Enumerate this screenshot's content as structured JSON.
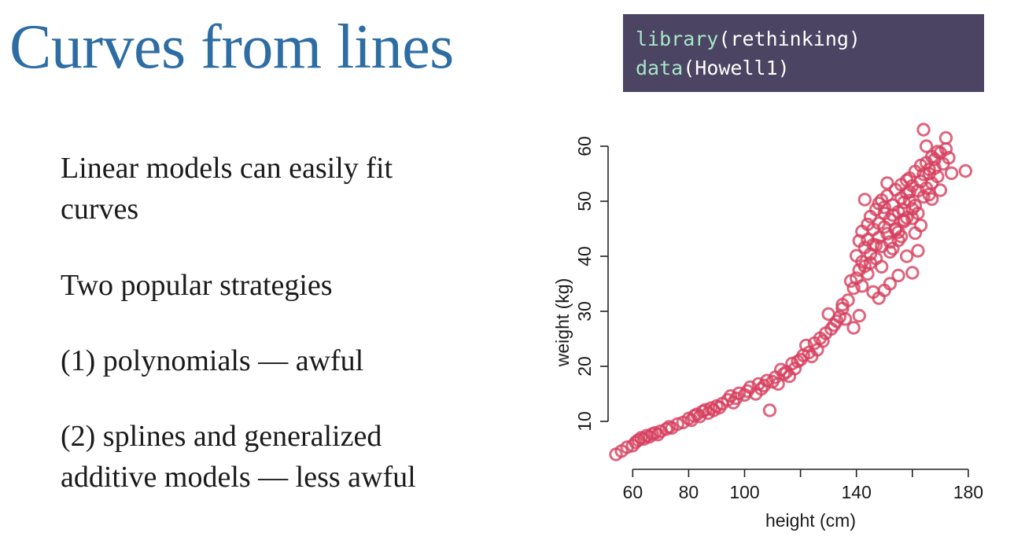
{
  "colors": {
    "title": "#2e6da4",
    "code_bg": "#4b4462",
    "code_fn": "#a8e6c8",
    "code_text": "#ffffff",
    "points": "#d6405e"
  },
  "slide": {
    "title": "Curves from lines",
    "code": [
      {
        "fn": "library",
        "args": "(rethinking)"
      },
      {
        "fn": "data",
        "args": "(Howell1)"
      }
    ],
    "bullets": [
      [
        "Linear models can easily fit",
        "curves"
      ],
      [
        "Two popular strategies"
      ],
      [
        "(1) polynomials — awful"
      ],
      [
        "(2) splines and generalized",
        "additive models — less awful"
      ]
    ]
  },
  "chart_data": {
    "type": "scatter",
    "title": "",
    "xlabel": "height (cm)",
    "ylabel": "weight (kg)",
    "xlim": [
      54,
      182
    ],
    "ylim": [
      3,
      63
    ],
    "xticks": [
      60,
      80,
      100,
      140,
      180
    ],
    "yticks": [
      10,
      20,
      30,
      40,
      50,
      60
    ],
    "grid": false,
    "series": [
      {
        "x": [
          54,
          56,
          58,
          60,
          61,
          62,
          63,
          64,
          65,
          66,
          67,
          68,
          69,
          70,
          72,
          73,
          74,
          76,
          78,
          80,
          81,
          82,
          83,
          84,
          85,
          86,
          87,
          88,
          89,
          90,
          91,
          92,
          94,
          95,
          96,
          97,
          98,
          100,
          101,
          102,
          104,
          105,
          106,
          107,
          108,
          109,
          110,
          111,
          112,
          113,
          114,
          115,
          116,
          117,
          118,
          119,
          120,
          121,
          122,
          123,
          124,
          125,
          126,
          127,
          128,
          129,
          130,
          131,
          132,
          133,
          134,
          135,
          136,
          137,
          138,
          139,
          140,
          140,
          141,
          141,
          142,
          142,
          143,
          143,
          144,
          144,
          145,
          145,
          146,
          146,
          147,
          147,
          148,
          148,
          149,
          149,
          150,
          150,
          151,
          151,
          152,
          152,
          153,
          153,
          154,
          154,
          155,
          155,
          156,
          156,
          157,
          157,
          158,
          158,
          159,
          159,
          160,
          160,
          161,
          161,
          162,
          162,
          163,
          163,
          164,
          164,
          165,
          165,
          166,
          166,
          167,
          167,
          168,
          168,
          169,
          170,
          171,
          172,
          173,
          174,
          179,
          164,
          172,
          169,
          160,
          135,
          148,
          150,
          152,
          145,
          155,
          158,
          162,
          147,
          139,
          143,
          157,
          151,
          165,
          146,
          141,
          149,
          154,
          156,
          160,
          163,
          167,
          170,
          153,
          150,
          148,
          159,
          144,
          142,
          161,
          157,
          152,
          166,
          155,
          158
        ],
        "y": [
          4.0,
          4.6,
          5.3,
          5.6,
          6.2,
          6.6,
          7.0,
          6.8,
          7.4,
          7.2,
          7.7,
          7.9,
          7.6,
          8.2,
          8.6,
          9.0,
          8.8,
          9.5,
          9.8,
          10.5,
          10.2,
          11.0,
          11.3,
          10.9,
          11.8,
          12.1,
          11.5,
          12.4,
          12.0,
          12.8,
          12.5,
          13.2,
          13.9,
          14.6,
          13.4,
          14.2,
          15.1,
          14.8,
          15.5,
          16.2,
          15.0,
          16.8,
          15.9,
          16.5,
          17.4,
          12.0,
          17.2,
          18.0,
          16.8,
          19.4,
          18.6,
          19.0,
          18.2,
          20.5,
          19.6,
          20.9,
          21.2,
          22.0,
          23.8,
          22.5,
          21.8,
          24.2,
          23.0,
          25.1,
          24.6,
          26.0,
          29.5,
          26.8,
          27.5,
          28.2,
          29.0,
          30.5,
          28.6,
          32.0,
          35.5,
          34.2,
          36.0,
          40.1,
          37.5,
          42.8,
          39.0,
          44.5,
          38.2,
          41.6,
          45.8,
          43.0,
          40.4,
          47.2,
          42.1,
          44.9,
          39.6,
          48.5,
          46.0,
          43.4,
          50.2,
          41.8,
          45.3,
          48.9,
          44.1,
          51.0,
          46.7,
          42.6,
          49.3,
          47.5,
          52.1,
          45.0,
          48.1,
          44.4,
          50.6,
          53.0,
          46.3,
          49.8,
          51.5,
          47.0,
          54.2,
          50.1,
          48.6,
          52.8,
          55.4,
          49.2,
          51.9,
          47.8,
          53.6,
          56.5,
          50.8,
          54.9,
          52.4,
          57.0,
          55.8,
          51.2,
          58.1,
          53.3,
          56.0,
          57.6,
          54.5,
          58.8,
          56.8,
          59.5,
          57.9,
          55.1,
          55.5,
          63.0,
          61.5,
          59.0,
          37.0,
          31.2,
          32.4,
          33.8,
          35.0,
          38.8,
          36.5,
          40.0,
          41.0,
          42.0,
          27.0,
          50.3,
          46.6,
          53.3,
          60.0,
          33.5,
          29.2,
          38.1,
          44.8,
          43.6,
          46.9,
          45.6,
          50.4,
          52.0,
          41.4,
          47.8,
          49.6,
          51.7,
          36.8,
          34.6,
          44.2,
          48.4,
          40.8,
          55.0,
          42.9,
          53.8
        ]
      }
    ]
  }
}
